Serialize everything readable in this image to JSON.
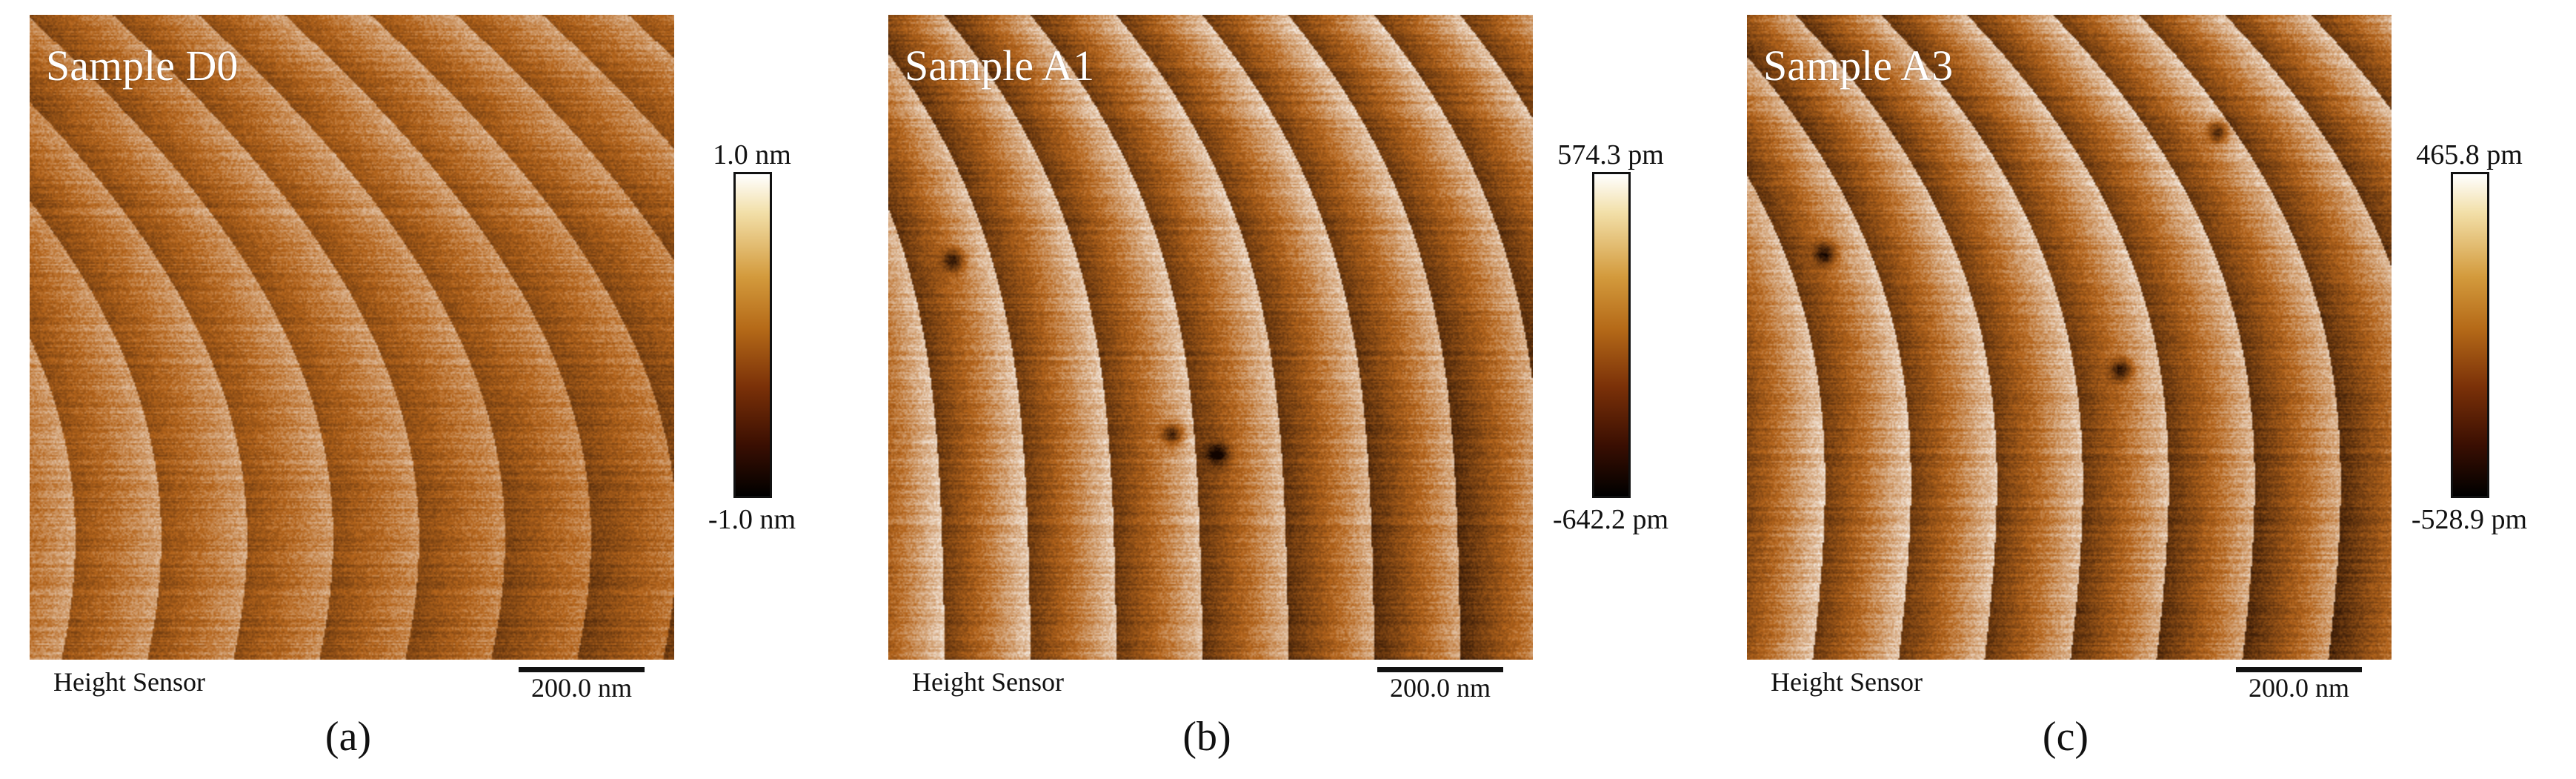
{
  "panels": [
    {
      "sample_label": "Sample D0",
      "sensor_label": "Height Sensor",
      "scale_bar": "200.0 nm",
      "panel_letter": "(a)",
      "colorbar": {
        "max": "1.0 nm",
        "min": "-1.0 nm"
      },
      "image": {
        "contrast": 0.55,
        "seed": 3,
        "dark_spots": []
      }
    },
    {
      "sample_label": "Sample A1",
      "sensor_label": "Height Sensor",
      "scale_bar": "200.0 nm",
      "panel_letter": "(b)",
      "colorbar": {
        "max": "574.3 pm",
        "min": "-642.2 pm"
      },
      "image": {
        "contrast": 1.0,
        "seed": 11,
        "dark_spots": [
          [
            0.1,
            0.38
          ],
          [
            0.44,
            0.65
          ],
          [
            0.51,
            0.68
          ]
        ]
      }
    },
    {
      "sample_label": "Sample A3",
      "sensor_label": "Height Sensor",
      "scale_bar": "200.0 nm",
      "panel_letter": "(c)",
      "colorbar": {
        "max": "465.8 pm",
        "min": "-528.9 pm"
      },
      "image": {
        "contrast": 1.0,
        "seed": 23,
        "dark_spots": [
          [
            0.12,
            0.37
          ],
          [
            0.58,
            0.55
          ],
          [
            0.73,
            0.18
          ]
        ]
      }
    }
  ],
  "colors": {
    "afm_dark": "#120400",
    "afm_mid": "#b5651c",
    "afm_light": "#ffffff"
  }
}
